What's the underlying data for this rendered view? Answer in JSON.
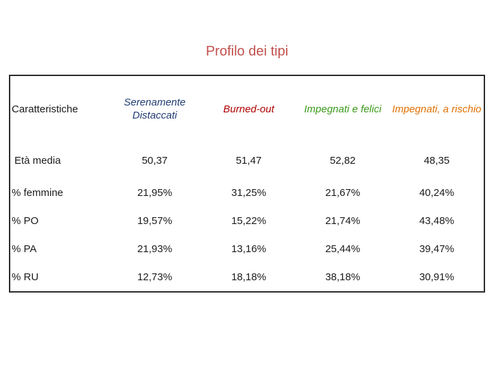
{
  "title": "Profilo dei tipi",
  "table": {
    "header": {
      "label": "Caratteristiche",
      "columns": [
        {
          "line1": "Serenamente",
          "line2": "Distaccati",
          "color": "#1f3b73"
        },
        {
          "line1": "Burned-out",
          "color": "#b00000"
        },
        {
          "line1": "Impegnati e felici",
          "color": "#3a9a1a"
        },
        {
          "line1": "Impegnati, a rischio",
          "color": "#e07000"
        }
      ]
    },
    "rows": [
      {
        "label": "Età media",
        "values": [
          "50,37",
          "51,47",
          "52,82",
          "48,35"
        ]
      },
      {
        "label": "% femmine",
        "values": [
          "21,95%",
          "31,25%",
          "21,67%",
          "40,24%"
        ]
      },
      {
        "label": "% PO",
        "values": [
          "19,57%",
          "15,22%",
          "21,74%",
          "43,48%"
        ]
      },
      {
        "label": "% PA",
        "values": [
          "21,93%",
          "13,16%",
          "25,44%",
          "39,47%"
        ]
      },
      {
        "label": "% RU",
        "values": [
          "12,73%",
          "18,18%",
          "38,18%",
          "30,91%"
        ]
      }
    ]
  }
}
